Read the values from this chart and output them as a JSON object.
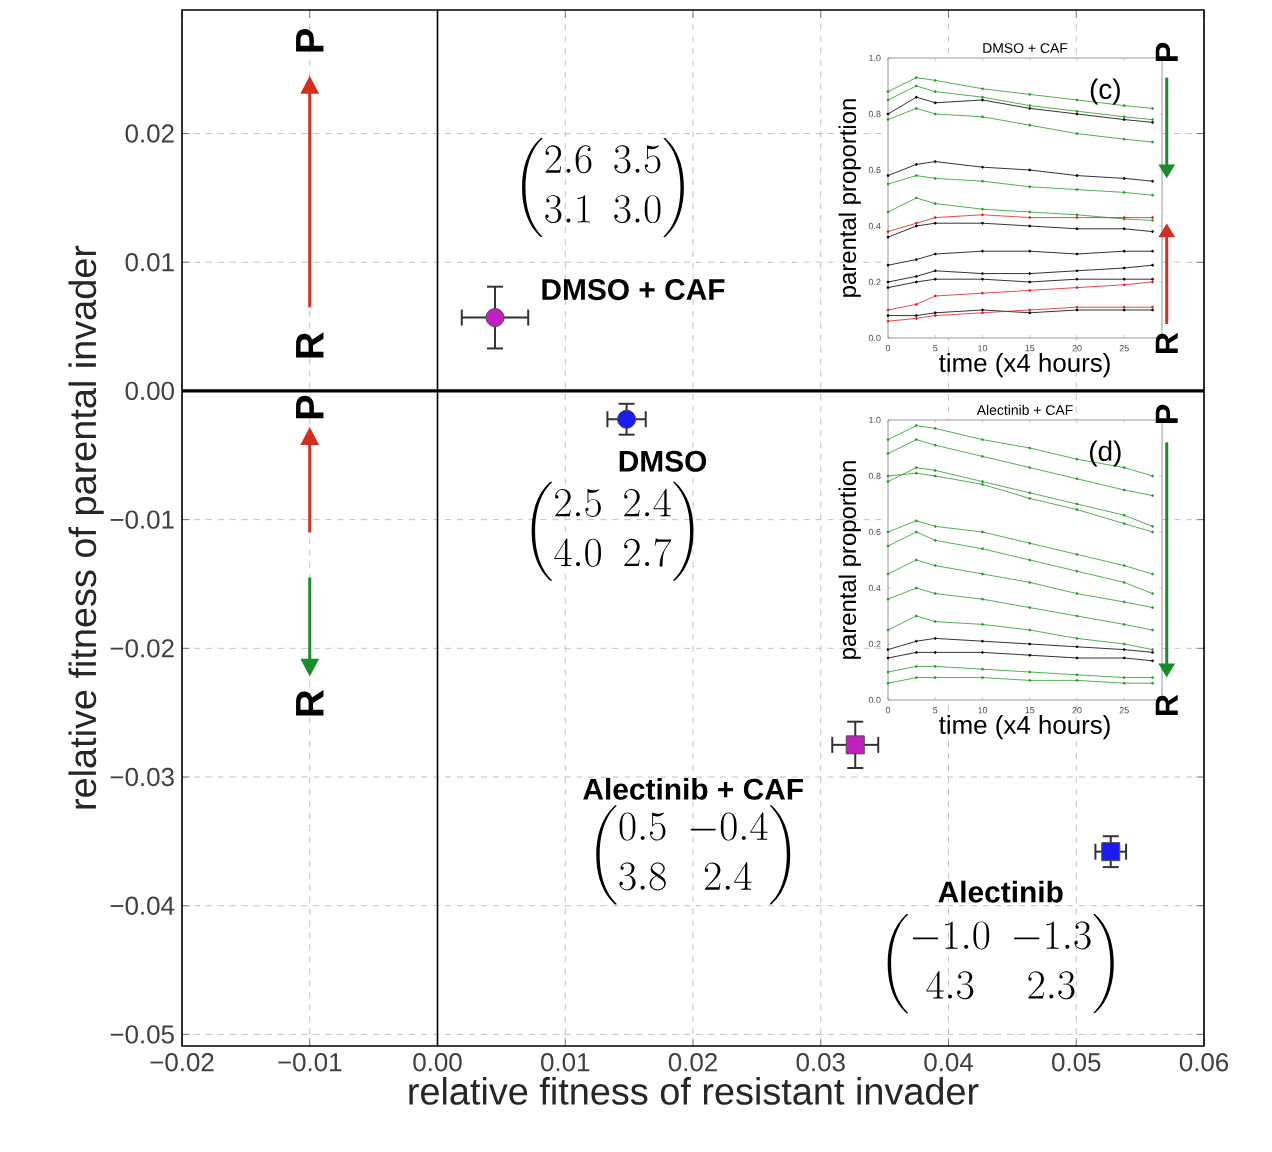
{
  "chart_data": [
    {
      "type": "scatter",
      "xlabel": "relative fitness of resistant invader",
      "ylabel": "relative fitness of parental invader",
      "xlim": [
        -0.02,
        0.06
      ],
      "ylim": [
        -0.0509,
        0.0296
      ],
      "xticks": [
        {
          "value": -0.02,
          "label": "−0.02"
        },
        {
          "value": -0.01,
          "label": "−0.01"
        },
        {
          "value": 0,
          "label": "0.00"
        },
        {
          "value": 0.01,
          "label": "0.01"
        },
        {
          "value": 0.02,
          "label": "0.02"
        },
        {
          "value": 0.03,
          "label": "0.03"
        },
        {
          "value": 0.04,
          "label": "0.04"
        },
        {
          "value": 0.05,
          "label": "0.05"
        },
        {
          "value": 0.06,
          "label": "0.06"
        }
      ],
      "yticks": [
        {
          "value": -0.05,
          "label": "−0.05"
        },
        {
          "value": -0.04,
          "label": "−0.04"
        },
        {
          "value": -0.03,
          "label": "−0.03"
        },
        {
          "value": -0.02,
          "label": "−0.02"
        },
        {
          "value": -0.01,
          "label": "−0.01"
        },
        {
          "value": 0,
          "label": "0.00"
        },
        {
          "value": 0.01,
          "label": "0.01"
        },
        {
          "value": 0.02,
          "label": "0.02"
        }
      ],
      "grid": true,
      "ref_lines": [
        {
          "axis": "y",
          "value": 0,
          "color": "#000000"
        },
        {
          "axis": "x",
          "value": 0,
          "color": "#000000"
        }
      ],
      "annotations": [
        "P",
        "R",
        "P",
        "R",
        "\\begin{pmatrix}2.6 & 3.5\\\\ 3.1 & 3.0\\end{pmatrix}",
        "\\begin{pmatrix}2.5 & 2.4\\\\ 4.0 & 2.7\\end{pmatrix}",
        "\\begin{pmatrix}0.5 & -0.4\\\\ 3.8 & 2.4\\end{pmatrix}",
        "\\begin{pmatrix}-1.0 & -1.3\\\\ 4.3 & 2.3\\end{pmatrix}"
      ],
      "series": [
        {
          "name": "DMSO + CAF",
          "color": "#c020c0",
          "marker": "circle",
          "x": [
            0.0045
          ],
          "values": [
            0.0057
          ],
          "errors": [
            0.0024
          ],
          "xerrors": [
            0.0026
          ]
        },
        {
          "name": "DMSO",
          "color": "#1c1cf0",
          "marker": "circle",
          "x": [
            0.0148
          ],
          "values": [
            -0.0022
          ],
          "errors": [
            0.0012
          ],
          "xerrors": [
            0.0015
          ]
        },
        {
          "name": "Alectinib + CAF",
          "color": "#c020c0",
          "marker": "square",
          "x": [
            0.0327
          ],
          "values": [
            -0.0275
          ],
          "errors": [
            0.0018
          ],
          "xerrors": [
            0.0018
          ]
        },
        {
          "name": "Alectinib",
          "color": "#1c1cf0",
          "marker": "square",
          "x": [
            0.0527
          ],
          "values": [
            -0.0358
          ],
          "errors": [
            0.0012
          ],
          "xerrors": [
            0.0012
          ]
        }
      ]
    },
    {
      "type": "line",
      "title": "DMSO + CAF",
      "xlabel": "time (x4 hours)",
      "ylabel": "parental proportion",
      "xlim": [
        0,
        29
      ],
      "ylim": [
        0,
        1
      ],
      "xticks": [
        0,
        5,
        10,
        15,
        20,
        25
      ],
      "yticks": [
        {
          "value": 0,
          "label": "0.0"
        },
        {
          "value": 0.2,
          "label": "0.2"
        },
        {
          "value": 0.4,
          "label": "0.4"
        },
        {
          "value": 0.6,
          "label": "0.6"
        },
        {
          "value": 0.8,
          "label": "0.8"
        },
        {
          "value": 1,
          "label": "1.0"
        }
      ],
      "annotations": [
        "(c)",
        "P",
        "R"
      ],
      "marker": "circle",
      "x": [
        0,
        3,
        5,
        10,
        15,
        20,
        25,
        28
      ],
      "series": [
        {
          "color": "#2a9a2a",
          "values": [
            0.88,
            0.93,
            0.92,
            0.89,
            0.87,
            0.85,
            0.83,
            0.82
          ]
        },
        {
          "color": "#2a9a2a",
          "values": [
            0.85,
            0.9,
            0.88,
            0.86,
            0.83,
            0.81,
            0.79,
            0.78
          ]
        },
        {
          "color": "#000000",
          "values": [
            0.8,
            0.86,
            0.84,
            0.85,
            0.82,
            0.8,
            0.78,
            0.77
          ]
        },
        {
          "color": "#2a9a2a",
          "values": [
            0.78,
            0.82,
            0.8,
            0.79,
            0.76,
            0.73,
            0.71,
            0.7
          ]
        },
        {
          "color": "#000000",
          "values": [
            0.58,
            0.62,
            0.63,
            0.61,
            0.6,
            0.58,
            0.57,
            0.56
          ]
        },
        {
          "color": "#2a9a2a",
          "values": [
            0.55,
            0.58,
            0.57,
            0.56,
            0.54,
            0.53,
            0.52,
            0.51
          ]
        },
        {
          "color": "#2a9a2a",
          "values": [
            0.45,
            0.5,
            0.48,
            0.46,
            0.45,
            0.44,
            0.425,
            0.42
          ]
        },
        {
          "color": "#e02020",
          "values": [
            0.38,
            0.41,
            0.43,
            0.44,
            0.43,
            0.43,
            0.43,
            0.43
          ]
        },
        {
          "color": "#000000",
          "values": [
            0.36,
            0.4,
            0.41,
            0.41,
            0.4,
            0.39,
            0.39,
            0.38
          ]
        },
        {
          "color": "#000000",
          "values": [
            0.26,
            0.28,
            0.3,
            0.31,
            0.31,
            0.3,
            0.31,
            0.31
          ]
        },
        {
          "color": "#000000",
          "values": [
            0.2,
            0.22,
            0.24,
            0.23,
            0.23,
            0.24,
            0.25,
            0.26
          ]
        },
        {
          "color": "#000000",
          "values": [
            0.18,
            0.2,
            0.21,
            0.21,
            0.2,
            0.21,
            0.21,
            0.21
          ]
        },
        {
          "color": "#e02020",
          "values": [
            0.1,
            0.12,
            0.15,
            0.16,
            0.17,
            0.18,
            0.19,
            0.2
          ]
        },
        {
          "color": "#000000",
          "values": [
            0.08,
            0.08,
            0.09,
            0.1,
            0.09,
            0.1,
            0.1,
            0.1
          ]
        },
        {
          "color": "#e02020",
          "values": [
            0.06,
            0.07,
            0.08,
            0.09,
            0.1,
            0.11,
            0.11,
            0.11
          ]
        }
      ]
    },
    {
      "type": "line",
      "title": "Alectinib + CAF",
      "xlabel": "time (x4 hours)",
      "ylabel": "parental proportion",
      "xlim": [
        0,
        29
      ],
      "ylim": [
        0,
        1
      ],
      "xticks": [
        0,
        5,
        10,
        15,
        20,
        25
      ],
      "yticks": [
        {
          "value": 0,
          "label": "0.0"
        },
        {
          "value": 0.2,
          "label": "0.2"
        },
        {
          "value": 0.4,
          "label": "0.4"
        },
        {
          "value": 0.6,
          "label": "0.6"
        },
        {
          "value": 0.8,
          "label": "0.8"
        },
        {
          "value": 1,
          "label": "1.0"
        }
      ],
      "annotations": [
        "(d)",
        "P",
        "R"
      ],
      "marker": "circle",
      "x": [
        0,
        3,
        5,
        10,
        15,
        20,
        25,
        28
      ],
      "series": [
        {
          "color": "#2a9a2a",
          "values": [
            0.93,
            0.98,
            0.97,
            0.93,
            0.9,
            0.86,
            0.83,
            0.8
          ]
        },
        {
          "color": "#2a9a2a",
          "values": [
            0.88,
            0.93,
            0.91,
            0.87,
            0.83,
            0.79,
            0.75,
            0.73
          ]
        },
        {
          "color": "#2a9a2a",
          "values": [
            0.78,
            0.83,
            0.82,
            0.78,
            0.74,
            0.7,
            0.66,
            0.62
          ]
        },
        {
          "color": "#2a9a2a",
          "values": [
            0.8,
            0.81,
            0.8,
            0.77,
            0.72,
            0.68,
            0.63,
            0.6
          ]
        },
        {
          "color": "#2a9a2a",
          "values": [
            0.6,
            0.64,
            0.62,
            0.6,
            0.56,
            0.52,
            0.48,
            0.45
          ]
        },
        {
          "color": "#2a9a2a",
          "values": [
            0.55,
            0.6,
            0.57,
            0.54,
            0.5,
            0.46,
            0.42,
            0.38
          ]
        },
        {
          "color": "#2a9a2a",
          "values": [
            0.45,
            0.5,
            0.48,
            0.45,
            0.42,
            0.38,
            0.35,
            0.33
          ]
        },
        {
          "color": "#2a9a2a",
          "values": [
            0.36,
            0.4,
            0.38,
            0.36,
            0.33,
            0.3,
            0.27,
            0.25
          ]
        },
        {
          "color": "#2a9a2a",
          "values": [
            0.25,
            0.3,
            0.28,
            0.27,
            0.25,
            0.22,
            0.2,
            0.18
          ]
        },
        {
          "color": "#000000",
          "values": [
            0.18,
            0.21,
            0.22,
            0.21,
            0.2,
            0.19,
            0.18,
            0.17
          ]
        },
        {
          "color": "#000000",
          "values": [
            0.15,
            0.17,
            0.17,
            0.17,
            0.16,
            0.15,
            0.15,
            0.14
          ]
        },
        {
          "color": "#2a9a2a",
          "values": [
            0.1,
            0.12,
            0.12,
            0.11,
            0.1,
            0.09,
            0.08,
            0.08
          ]
        },
        {
          "color": "#2a9a2a",
          "values": [
            0.06,
            0.08,
            0.08,
            0.08,
            0.07,
            0.07,
            0.06,
            0.06
          ]
        }
      ]
    }
  ]
}
